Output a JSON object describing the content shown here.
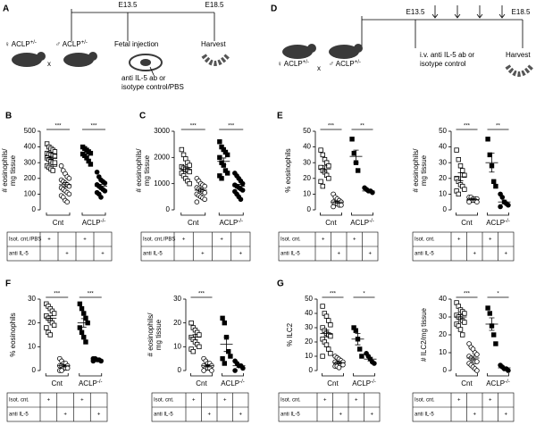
{
  "schematic_a": {
    "label": "A",
    "female": {
      "text": "♀ ACLP",
      "sup": "+/-"
    },
    "cross": "x",
    "male": {
      "text": "♂ ACLP",
      "sup": "+/-"
    },
    "t1": "E13.5",
    "t2": "E18.5",
    "step": "Fetal injection",
    "treatment": [
      "anti IL-5 ab or",
      "isotype control/PBS"
    ],
    "end": "Harvest"
  },
  "schematic_d": {
    "label": "D",
    "female": {
      "text": "♀ ACLP",
      "sup": "+/-"
    },
    "cross": "x",
    "male": {
      "text": "♂ ACLP",
      "sup": "+/-"
    },
    "t1": "E13.5",
    "t2": "E18.5",
    "treatment": [
      "i.v. anti IL-5 ab or",
      "isotype control"
    ],
    "end": "Harvest"
  },
  "chart_data": [
    {
      "type": "scatter",
      "panel_label": "B",
      "ylabel": [
        "# eosinophils/",
        "mg tissue"
      ],
      "ylim": [
        0,
        500
      ],
      "yticks": [
        0,
        100,
        200,
        300,
        400,
        500
      ],
      "group_labels": [
        {
          "text": "Cnt"
        },
        {
          "text": "ACLP",
          "sup": "-/-"
        }
      ],
      "significance": [
        "***",
        "***"
      ],
      "groups": [
        {
          "marker": "square-open",
          "values": [
            420,
            400,
            390,
            380,
            370,
            360,
            355,
            350,
            345,
            340,
            330,
            320,
            310,
            300,
            290,
            280,
            270,
            260,
            250,
            300
          ],
          "mean": 330,
          "sem": 10
        },
        {
          "marker": "circle-open",
          "values": [
            280,
            250,
            230,
            210,
            200,
            190,
            180,
            170,
            160,
            150,
            140,
            130,
            120,
            110,
            100,
            90,
            80,
            60,
            50
          ],
          "mean": 160,
          "sem": 14
        },
        {
          "marker": "square-filled",
          "values": [
            400,
            390,
            380,
            370,
            360,
            355,
            345,
            330,
            310,
            290
          ],
          "mean": 355,
          "sem": 12
        },
        {
          "marker": "circle-filled",
          "values": [
            240,
            210,
            190,
            180,
            170,
            160,
            150,
            140,
            130,
            120,
            110,
            100,
            80
          ],
          "mean": 150,
          "sem": 12
        }
      ],
      "table_rows": [
        {
          "label": "Isot. cnt./PBS",
          "cells": [
            "+",
            null,
            "+",
            null
          ]
        },
        {
          "label": "anti IL-5",
          "cells": [
            null,
            "+",
            null,
            "+"
          ]
        }
      ]
    },
    {
      "type": "scatter",
      "panel_label": "C",
      "ylabel": [
        "# eosinophils/",
        "mg tissue"
      ],
      "ylim": [
        0,
        3000
      ],
      "yticks": [
        0,
        1000,
        2000,
        3000
      ],
      "group_labels": [
        {
          "text": "Cnt"
        },
        {
          "text": "ACLP",
          "sup": "-/-"
        }
      ],
      "significance": [
        "***",
        "***"
      ],
      "groups": [
        {
          "marker": "square-open",
          "values": [
            2300,
            2100,
            1950,
            1800,
            1700,
            1650,
            1600,
            1550,
            1500,
            1450,
            1400,
            1300,
            1200,
            1100,
            1000
          ],
          "mean": 1550,
          "sem": 90
        },
        {
          "marker": "circle-open",
          "values": [
            1200,
            1100,
            1000,
            950,
            900,
            850,
            800,
            750,
            700,
            650,
            600,
            550,
            500,
            450,
            400,
            300
          ],
          "mean": 750,
          "sem": 60
        },
        {
          "marker": "square-filled",
          "values": [
            2600,
            2400,
            2300,
            2200,
            2100,
            2000,
            1800,
            1700,
            1500,
            1400,
            1300,
            1200
          ],
          "mean": 1850,
          "sem": 130
        },
        {
          "marker": "circle-filled",
          "values": [
            1400,
            1300,
            1200,
            1100,
            1000,
            950,
            900,
            850,
            800,
            750,
            700,
            600,
            500,
            400
          ],
          "mean": 900,
          "sem": 70
        }
      ],
      "table_rows": [
        {
          "label": "Isot. cnt./PBS",
          "cells": [
            "+",
            null,
            "+",
            null
          ]
        },
        {
          "label": "anti IL-5",
          "cells": [
            null,
            "+",
            null,
            "+"
          ]
        }
      ]
    },
    {
      "type": "scatter",
      "panel_label": "E",
      "ylabel": [
        "% eosinophils"
      ],
      "ylim": [
        0,
        50
      ],
      "yticks": [
        0,
        10,
        20,
        30,
        40,
        50
      ],
      "group_labels": [
        {
          "text": "Cnt"
        },
        {
          "text": "ACLP",
          "sup": "-/-"
        }
      ],
      "significance": [
        "***",
        "**"
      ],
      "groups": [
        {
          "marker": "square-open",
          "values": [
            38,
            35,
            32,
            30,
            28,
            27,
            25,
            24,
            22,
            20,
            18,
            15
          ],
          "mean": 26,
          "sem": 2
        },
        {
          "marker": "circle-open",
          "values": [
            10,
            8,
            7,
            6,
            5,
            5,
            4,
            4,
            3,
            3,
            2
          ],
          "mean": 5,
          "sem": 0.7
        },
        {
          "marker": "square-filled",
          "values": [
            45,
            36,
            30,
            25
          ],
          "mean": 34,
          "sem": 4
        },
        {
          "marker": "circle-filled",
          "values": [
            14,
            13,
            12,
            12,
            11
          ],
          "mean": 12,
          "sem": 0.5
        }
      ],
      "table_rows": [
        {
          "label": "Isot. cnt.",
          "cells": [
            "+",
            null,
            "+",
            null
          ]
        },
        {
          "label": "anti IL-5",
          "cells": [
            null,
            "+",
            null,
            "+"
          ]
        }
      ]
    },
    {
      "type": "scatter",
      "ylabel": [
        "# eosinophils/",
        "mg tissue"
      ],
      "ylim": [
        0,
        50
      ],
      "yticks": [
        0,
        10,
        20,
        30,
        40,
        50
      ],
      "group_labels": [
        {
          "text": "Cnt"
        },
        {
          "text": "ACLP",
          "sup": "-/-"
        }
      ],
      "significance": [
        "***",
        "**"
      ],
      "groups": [
        {
          "marker": "square-open",
          "values": [
            38,
            32,
            28,
            25,
            22,
            20,
            18,
            16,
            15,
            13,
            12,
            10
          ],
          "mean": 21,
          "sem": 2.5
        },
        {
          "marker": "circle-open",
          "values": [
            8,
            8,
            7,
            7,
            7,
            6,
            6,
            6,
            6,
            5,
            5
          ],
          "mean": 6.5,
          "sem": 0.3
        },
        {
          "marker": "square-filled",
          "values": [
            45,
            35,
            28,
            18,
            15
          ],
          "mean": 30,
          "sem": 6
        },
        {
          "marker": "circle-filled",
          "values": [
            10,
            8,
            5,
            4,
            3,
            2
          ],
          "mean": 5,
          "sem": 1.2
        }
      ],
      "table_rows": [
        {
          "label": "Isot. cnt.",
          "cells": [
            "+",
            null,
            "+",
            null
          ]
        },
        {
          "label": "anti IL-5",
          "cells": [
            null,
            "+",
            null,
            "+"
          ]
        }
      ]
    },
    {
      "type": "scatter",
      "panel_label": "F",
      "ylabel": [
        "% eosinophils"
      ],
      "ylim": [
        0,
        30
      ],
      "yticks": [
        0,
        10,
        20,
        30
      ],
      "group_labels": [
        {
          "text": "Cnt"
        },
        {
          "text": "ACLP",
          "sup": "-/-"
        }
      ],
      "significance": [
        "***",
        "***"
      ],
      "groups": [
        {
          "marker": "square-open",
          "values": [
            28,
            27,
            26,
            25,
            24,
            23,
            22,
            21,
            20,
            19,
            18,
            16,
            15
          ],
          "mean": 22,
          "sem": 1
        },
        {
          "marker": "circle-open",
          "values": [
            5,
            4,
            3,
            3,
            2,
            2,
            2,
            1,
            1,
            1,
            0,
            0
          ],
          "mean": 2,
          "sem": 0.5
        },
        {
          "marker": "square-filled",
          "values": [
            28,
            26,
            24,
            22,
            20,
            18,
            16,
            14,
            12
          ],
          "mean": 20,
          "sem": 1.8
        },
        {
          "marker": "circle-filled",
          "values": [
            5,
            5,
            4.5,
            4.5,
            4,
            4
          ],
          "mean": 4.5,
          "sem": 0.2
        }
      ],
      "table_rows": [
        {
          "label": "Isot. cnt.",
          "cells": [
            "+",
            null,
            "+",
            null
          ]
        },
        {
          "label": "anti IL-5",
          "cells": [
            null,
            "+",
            null,
            "+"
          ]
        }
      ]
    },
    {
      "type": "scatter",
      "ylabel": [
        "# eosinophils/",
        "mg tissue"
      ],
      "ylim": [
        0,
        30
      ],
      "yticks": [
        0,
        10,
        20,
        30
      ],
      "group_labels": [
        {
          "text": "Cnt"
        },
        {
          "text": "ACLP",
          "sup": "-/-"
        }
      ],
      "significance": [
        "***"
      ],
      "groups": [
        {
          "marker": "square-open",
          "values": [
            20,
            18,
            17,
            16,
            15,
            14,
            13,
            12,
            11,
            10,
            9,
            8
          ],
          "mean": 14,
          "sem": 1.1
        },
        {
          "marker": "circle-open",
          "values": [
            5,
            4,
            3,
            3,
            2,
            2,
            1,
            1,
            1,
            0,
            0
          ],
          "mean": 2,
          "sem": 0.5
        },
        {
          "marker": "square-filled",
          "values": [
            22,
            20,
            14,
            8,
            6,
            5,
            3
          ],
          "mean": 11,
          "sem": 3
        },
        {
          "marker": "circle-filled",
          "values": [
            4,
            3,
            2,
            2,
            1,
            0
          ],
          "mean": 2,
          "sem": 0.6
        }
      ],
      "table_rows": [
        {
          "label": "Isot. cnt.",
          "cells": [
            "+",
            null,
            "+",
            null
          ]
        },
        {
          "label": "anti IL-5",
          "cells": [
            null,
            "+",
            null,
            "+"
          ]
        }
      ]
    },
    {
      "type": "scatter",
      "panel_label": "G",
      "ylabel": [
        "% ILC2"
      ],
      "ylim": [
        0,
        50
      ],
      "yticks": [
        0,
        10,
        20,
        30,
        40,
        50
      ],
      "group_labels": [
        {
          "text": "Cnt"
        },
        {
          "text": "ACLP",
          "sup": "-/-"
        }
      ],
      "significance": [
        "***",
        "*"
      ],
      "groups": [
        {
          "marker": "square-open",
          "values": [
            45,
            40,
            38,
            35,
            32,
            30,
            28,
            26,
            25,
            24,
            22,
            20,
            18,
            15,
            12,
            10
          ],
          "mean": 26,
          "sem": 2.3
        },
        {
          "marker": "circle-open",
          "values": [
            10,
            9,
            8,
            7,
            6,
            6,
            5,
            5,
            4,
            4,
            3,
            3,
            2
          ],
          "mean": 5.5,
          "sem": 0.7
        },
        {
          "marker": "square-filled",
          "values": [
            30,
            28,
            22,
            15,
            10
          ],
          "mean": 22,
          "sem": 4
        },
        {
          "marker": "circle-filled",
          "values": [
            12,
            10,
            8,
            6,
            5
          ],
          "mean": 8,
          "sem": 1.3
        }
      ],
      "table_rows": [
        {
          "label": "Isot. cnt.",
          "cells": [
            "+",
            null,
            "+",
            null
          ]
        },
        {
          "label": "anti IL-5",
          "cells": [
            null,
            "+",
            null,
            "+"
          ]
        }
      ]
    },
    {
      "type": "scatter",
      "ylabel": [
        "# ILC2/mg tissue"
      ],
      "ylim": [
        0,
        40
      ],
      "yticks": [
        0,
        10,
        20,
        30,
        40
      ],
      "group_labels": [
        {
          "text": "Cnt"
        },
        {
          "text": "ACLP",
          "sup": "-/-"
        }
      ],
      "significance": [
        "***",
        "*"
      ],
      "groups": [
        {
          "marker": "square-open",
          "values": [
            38,
            36,
            34,
            33,
            32,
            31,
            30,
            29,
            28,
            27,
            26,
            25,
            23,
            20
          ],
          "mean": 30,
          "sem": 1.3
        },
        {
          "marker": "circle-open",
          "values": [
            15,
            13,
            12,
            10,
            9,
            8,
            7,
            6,
            5,
            5,
            4,
            3,
            2,
            1,
            0
          ],
          "mean": 7,
          "sem": 1
        },
        {
          "marker": "square-filled",
          "values": [
            35,
            32,
            25,
            20,
            15
          ],
          "mean": 26,
          "sem": 3.5
        },
        {
          "marker": "circle-filled",
          "values": [
            3,
            2,
            1,
            1,
            0
          ],
          "mean": 1.5,
          "sem": 0.5
        }
      ],
      "table_rows": [
        {
          "label": "Isot. cnt.",
          "cells": [
            "+",
            null,
            "+",
            null
          ]
        },
        {
          "label": "anti IL-5",
          "cells": [
            null,
            "+",
            null,
            "+"
          ]
        }
      ]
    }
  ]
}
